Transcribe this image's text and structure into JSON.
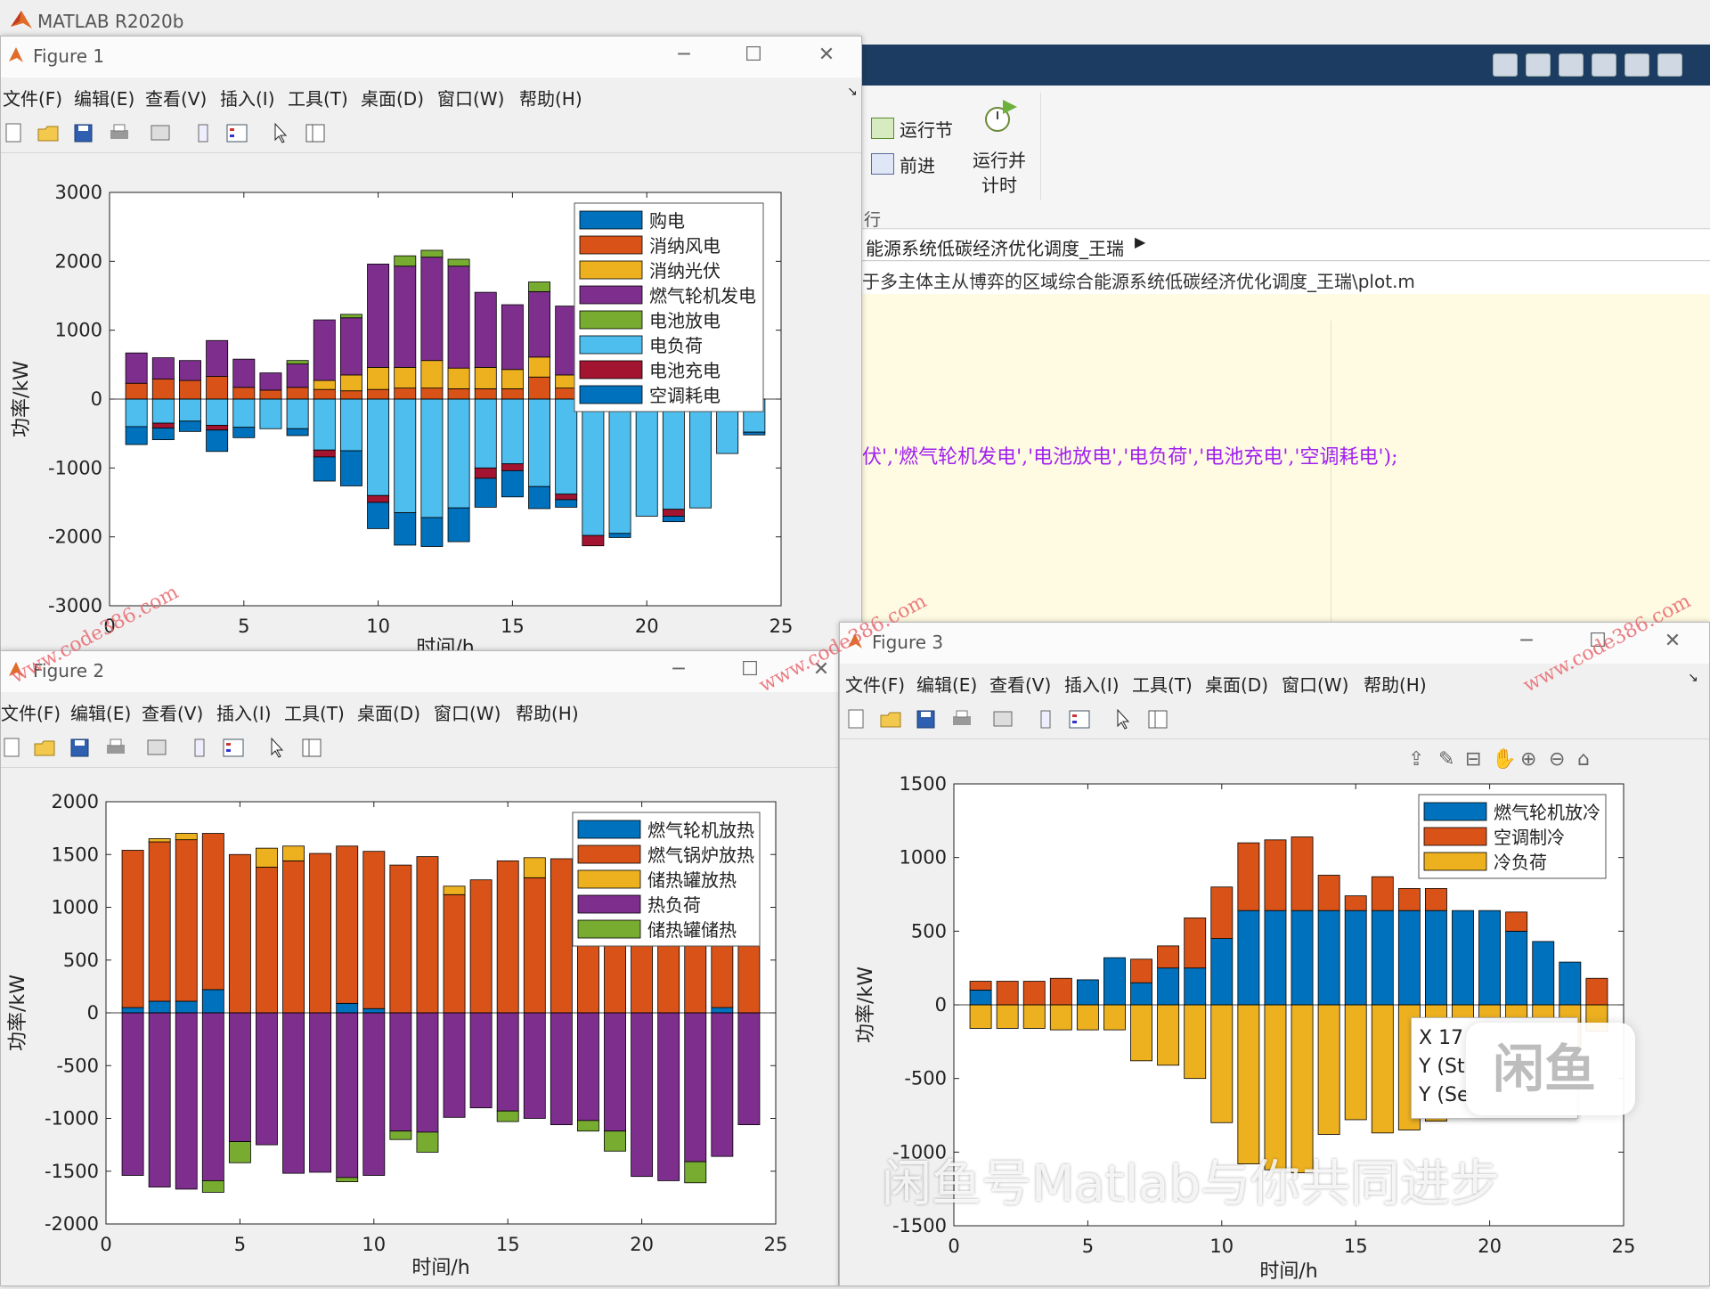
{
  "main_window": {
    "title": "MATLAB R2020b",
    "ribbon": {
      "run_section": "运行节",
      "advance": "前进",
      "run_and_time_line1": "运行并",
      "run_and_time_line2": "计时",
      "section_label": "行"
    },
    "address": "能源系统低碳经济优化调度_王瑞",
    "path": "于多主体主从博弈的区域综合能源系统低碳经济优化调度_王瑞\\plot.m",
    "code_line": "伏','燃气轮机发电','电池放电','电负荷','电池充电','空调耗电');"
  },
  "menus": [
    "文件(F)",
    "编辑(E)",
    "查看(V)",
    "插入(I)",
    "工具(T)",
    "桌面(D)",
    "窗口(W)",
    "帮助(H)"
  ],
  "figure1": {
    "title": "Figure 1",
    "watermark": "www.code386.com",
    "xlabel": "时间/h",
    "chart_data": {
      "type": "bar",
      "stacked": true,
      "title": "",
      "xlabel": "时间/h",
      "ylabel": "功率/kW",
      "xlim": [
        0,
        25
      ],
      "ylim": [
        -3000,
        3000
      ],
      "xticks": [
        0,
        5,
        10,
        15,
        20,
        25
      ],
      "yticks": [
        -3000,
        -2000,
        -1000,
        0,
        1000,
        2000,
        3000
      ],
      "legend_position": "top-right",
      "x": [
        1,
        2,
        3,
        4,
        5,
        6,
        7,
        8,
        9,
        10,
        11,
        12,
        13,
        14,
        15,
        16,
        17,
        18,
        19,
        20,
        21,
        22,
        23,
        24
      ],
      "series": [
        {
          "name": "购电",
          "color": "#0072bd",
          "values": [
            0,
            0,
            0,
            0,
            0,
            0,
            0,
            0,
            0,
            0,
            0,
            0,
            0,
            0,
            0,
            0,
            0,
            0,
            0,
            0,
            0,
            0,
            0,
            0
          ]
        },
        {
          "name": "消纳风电",
          "color": "#d95319",
          "values": [
            230,
            290,
            270,
            330,
            170,
            130,
            170,
            140,
            120,
            140,
            160,
            160,
            150,
            150,
            150,
            320,
            160,
            0,
            0,
            0,
            0,
            0,
            0,
            0
          ]
        },
        {
          "name": "消纳光伏",
          "color": "#edb120",
          "values": [
            0,
            0,
            0,
            0,
            0,
            0,
            0,
            130,
            230,
            320,
            300,
            400,
            300,
            310,
            280,
            290,
            190,
            0,
            0,
            0,
            0,
            0,
            0,
            0
          ]
        },
        {
          "name": "燃气轮机发电",
          "color": "#7e2f8e",
          "values": [
            440,
            310,
            290,
            520,
            410,
            250,
            340,
            880,
            830,
            1500,
            1470,
            1500,
            1480,
            1090,
            940,
            950,
            1000,
            0,
            0,
            0,
            0,
            0,
            0,
            0
          ]
        },
        {
          "name": "电池放电",
          "color": "#77ac30",
          "values": [
            0,
            0,
            0,
            0,
            0,
            0,
            50,
            0,
            50,
            0,
            150,
            100,
            100,
            0,
            0,
            140,
            0,
            0,
            0,
            0,
            0,
            0,
            0,
            0
          ]
        },
        {
          "name": "电负荷",
          "color": "#4dbeee",
          "values": [
            -400,
            -350,
            -320,
            -380,
            -410,
            -430,
            -430,
            -740,
            -750,
            -1400,
            -1650,
            -1720,
            -1580,
            -1000,
            -940,
            -1270,
            -1380,
            -1980,
            -1950,
            -1700,
            -1600,
            -1580,
            -790,
            -480
          ]
        },
        {
          "name": "电池充电",
          "color": "#a2142f",
          "values": [
            0,
            -70,
            0,
            -70,
            0,
            0,
            0,
            -100,
            0,
            -100,
            0,
            0,
            0,
            -150,
            -100,
            0,
            -80,
            -150,
            0,
            0,
            -100,
            0,
            0,
            0
          ]
        },
        {
          "name": "空调耗电",
          "color": "#0072bd",
          "values": [
            -260,
            -170,
            -150,
            -310,
            -150,
            0,
            -100,
            -350,
            -510,
            -380,
            -470,
            -420,
            -490,
            -420,
            -380,
            -320,
            -110,
            0,
            -60,
            0,
            -80,
            0,
            0,
            -40
          ]
        }
      ]
    }
  },
  "figure2": {
    "title": "Figure 2",
    "chart_data": {
      "type": "bar",
      "stacked": true,
      "title": "",
      "xlabel": "时间/h",
      "ylabel": "功率/kW",
      "xlim": [
        0,
        25
      ],
      "ylim": [
        -2000,
        2000
      ],
      "xticks": [
        0,
        5,
        10,
        15,
        20,
        25
      ],
      "yticks": [
        -2000,
        -1500,
        -1000,
        -500,
        0,
        500,
        1000,
        1500,
        2000
      ],
      "legend_position": "top-right",
      "x": [
        1,
        2,
        3,
        4,
        5,
        6,
        7,
        8,
        9,
        10,
        11,
        12,
        13,
        14,
        15,
        16,
        17,
        18,
        19,
        20,
        21,
        22,
        23,
        24
      ],
      "series": [
        {
          "name": "燃气轮机放热",
          "color": "#0072bd",
          "values": [
            50,
            110,
            110,
            220,
            0,
            0,
            0,
            0,
            90,
            40,
            0,
            0,
            0,
            0,
            0,
            0,
            0,
            0,
            0,
            0,
            0,
            0,
            50,
            0
          ]
        },
        {
          "name": "燃气锅炉放热",
          "color": "#d95319",
          "values": [
            1490,
            1510,
            1530,
            1480,
            1500,
            1380,
            1440,
            1510,
            1490,
            1490,
            1400,
            1480,
            1120,
            1260,
            1440,
            1280,
            1460,
            1120,
            1340,
            1400,
            1430,
            1420,
            830,
            1300
          ]
        },
        {
          "name": "储热罐放热",
          "color": "#edb120",
          "values": [
            0,
            30,
            60,
            0,
            0,
            180,
            140,
            0,
            0,
            0,
            0,
            0,
            80,
            0,
            0,
            190,
            0,
            0,
            0,
            0,
            0,
            0,
            0,
            0
          ]
        },
        {
          "name": "热负荷",
          "color": "#7e2f8e",
          "values": [
            -1540,
            -1650,
            -1670,
            -1590,
            -1220,
            -1250,
            -1520,
            -1510,
            -1560,
            -1540,
            -1120,
            -1130,
            -990,
            -900,
            -930,
            -1000,
            -1060,
            -1020,
            -1120,
            -1550,
            -1590,
            -1410,
            -1360,
            -1060
          ]
        },
        {
          "name": "储热罐储热",
          "color": "#77ac30",
          "values": [
            0,
            0,
            0,
            -110,
            -200,
            0,
            0,
            0,
            -40,
            0,
            -80,
            -190,
            0,
            0,
            -100,
            0,
            0,
            -100,
            -190,
            0,
            0,
            -200,
            0,
            0
          ]
        }
      ]
    }
  },
  "figure3": {
    "title": "Figure 3",
    "watermark": "www.code386.com",
    "overlay_text": "闲鱼号Matlab与你共同进步",
    "datatip": {
      "x_line": "X 17",
      "y1_line": "Y (St",
      "y2_line": "Y (Se"
    },
    "chart_data": {
      "type": "bar",
      "stacked": true,
      "title": "",
      "xlabel": "时间/h",
      "ylabel": "功率/kW",
      "xlim": [
        0,
        25
      ],
      "ylim": [
        -1500,
        1500
      ],
      "xticks": [
        0,
        5,
        10,
        15,
        20,
        25
      ],
      "yticks": [
        -1500,
        -1000,
        -500,
        0,
        500,
        1000,
        1500
      ],
      "legend_position": "top-right",
      "x": [
        1,
        2,
        3,
        4,
        5,
        6,
        7,
        8,
        9,
        10,
        11,
        12,
        13,
        14,
        15,
        16,
        17,
        18,
        19,
        20,
        21,
        22,
        23,
        24
      ],
      "series": [
        {
          "name": "燃气轮机放冷",
          "color": "#0072bd",
          "values": [
            100,
            0,
            0,
            0,
            170,
            320,
            150,
            250,
            250,
            450,
            640,
            640,
            640,
            640,
            640,
            640,
            640,
            640,
            640,
            640,
            500,
            430,
            290,
            0
          ]
        },
        {
          "name": "空调制冷",
          "color": "#d95319",
          "values": [
            60,
            160,
            160,
            180,
            0,
            0,
            160,
            150,
            340,
            350,
            460,
            480,
            500,
            240,
            100,
            230,
            150,
            150,
            0,
            0,
            130,
            0,
            0,
            180
          ]
        },
        {
          "name": "冷负荷",
          "color": "#edb120",
          "values": [
            -160,
            -160,
            -160,
            -170,
            -170,
            -170,
            -380,
            -410,
            -500,
            -800,
            -1080,
            -1120,
            -1140,
            -880,
            -780,
            -870,
            -850,
            -790,
            -640,
            -640,
            -630,
            -430,
            -290,
            -180
          ]
        }
      ]
    }
  }
}
